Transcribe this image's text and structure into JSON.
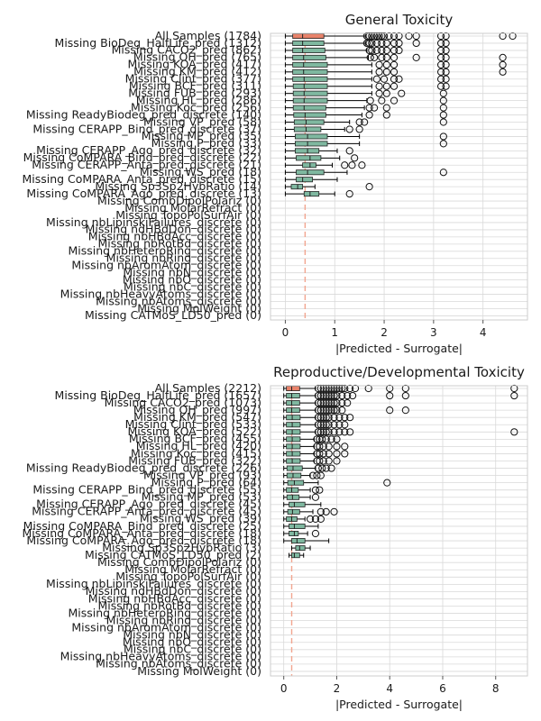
{
  "chart_data": [
    {
      "type": "box",
      "orientation": "horizontal",
      "title": "General Toxicity",
      "xlabel": "|Predicted - Surrogate|",
      "xlim": [
        -0.3,
        4.9
      ],
      "xticks": [
        0,
        1,
        2,
        3,
        4
      ],
      "ref_line": 0.4,
      "grid": true,
      "colors": {
        "highlight": "#e8826a",
        "box": "#7fb8a0",
        "ref": "#f2a58f",
        "grid": "#d9d9d9"
      },
      "categories": [
        {
          "label": "All Samples (1784)",
          "q1": 0.15,
          "med": 0.35,
          "q3": 0.78,
          "wlo": 0.0,
          "whi": 1.62,
          "out": [
            1.65,
            1.7,
            1.75,
            1.8,
            1.85,
            1.9,
            1.95,
            2.0,
            2.1,
            2.2,
            2.3,
            2.5,
            2.65,
            3.15,
            3.25,
            4.4,
            4.6
          ],
          "hl": true
        },
        {
          "label": "Missing BioDeg_HalfLife_pred (1312)",
          "q1": 0.15,
          "med": 0.35,
          "q3": 0.78,
          "wlo": 0.0,
          "whi": 1.62,
          "out": [
            1.65,
            1.7,
            1.75,
            1.85,
            1.95,
            2.05,
            2.2,
            2.3,
            2.65,
            3.15,
            3.25
          ]
        },
        {
          "label": "Missing CACO2_pred (862)",
          "q1": 0.15,
          "med": 0.35,
          "q3": 0.8,
          "wlo": 0.0,
          "whi": 1.65,
          "out": [
            1.7,
            1.75,
            1.85,
            1.95,
            2.05,
            2.2,
            2.3,
            3.15,
            3.25
          ]
        },
        {
          "label": "Missing OH_pred (765)",
          "q1": 0.15,
          "med": 0.37,
          "q3": 0.82,
          "wlo": 0.0,
          "whi": 1.68,
          "out": [
            1.72,
            1.8,
            1.95,
            2.05,
            2.2,
            2.65,
            3.15,
            3.25,
            4.4
          ]
        },
        {
          "label": "Missing KOA_pred (417)",
          "q1": 0.15,
          "med": 0.37,
          "q3": 0.85,
          "wlo": 0.0,
          "whi": 1.75,
          "out": [
            1.9,
            2.05,
            2.2,
            3.15,
            3.25,
            4.4
          ]
        },
        {
          "label": "Missing KM_pred (412)",
          "q1": 0.15,
          "med": 0.37,
          "q3": 0.85,
          "wlo": 0.0,
          "whi": 1.75,
          "out": [
            1.9,
            2.05,
            2.2,
            3.15,
            3.25,
            4.4
          ]
        },
        {
          "label": "Missing Clint_pred (377)",
          "q1": 0.15,
          "med": 0.38,
          "q3": 0.85,
          "wlo": 0.0,
          "whi": 1.75,
          "out": [
            1.85,
            2.0,
            2.2,
            2.3,
            3.15,
            3.25
          ]
        },
        {
          "label": "Missing BCF_pred (311)",
          "q1": 0.16,
          "med": 0.38,
          "q3": 0.85,
          "wlo": 0.0,
          "whi": 1.75,
          "out": [
            1.9,
            2.05,
            2.2,
            3.15,
            3.25
          ]
        },
        {
          "label": "Missing FUB_pred (293)",
          "q1": 0.16,
          "med": 0.38,
          "q3": 0.85,
          "wlo": 0.0,
          "whi": 1.75,
          "out": [
            1.9,
            2.05,
            2.35,
            3.2
          ]
        },
        {
          "label": "Missing HL_pred (286)",
          "q1": 0.16,
          "med": 0.38,
          "q3": 0.85,
          "wlo": 0.0,
          "whi": 1.65,
          "out": [
            1.72,
            1.95,
            2.2,
            3.2
          ]
        },
        {
          "label": "Missing Koc_pred (256)",
          "q1": 0.16,
          "med": 0.38,
          "q3": 0.82,
          "wlo": 0.0,
          "whi": 1.6,
          "out": [
            1.7,
            1.8,
            2.05,
            3.2
          ]
        },
        {
          "label": "Missing ReadyBiodeg_pred_discrete (140)",
          "q1": 0.17,
          "med": 0.4,
          "q3": 0.82,
          "wlo": 0.0,
          "whi": 1.55,
          "out": [
            1.7,
            2.05,
            3.2
          ]
        },
        {
          "label": "Missing VP_pred (58)",
          "q1": 0.18,
          "med": 0.42,
          "q3": 0.78,
          "wlo": 0.0,
          "whi": 1.3,
          "out": [
            1.5,
            1.6,
            3.2
          ]
        },
        {
          "label": "Missing CERAPP_Bind_pred_discrete (37)",
          "q1": 0.18,
          "med": 0.42,
          "q3": 0.72,
          "wlo": 0.0,
          "whi": 1.2,
          "out": [
            1.3,
            1.5
          ]
        },
        {
          "label": "Missing MP_pred (35)",
          "q1": 0.2,
          "med": 0.45,
          "q3": 0.85,
          "wlo": 0.0,
          "whi": 1.5,
          "out": [
            3.2
          ]
        },
        {
          "label": "Missing P_pred (33)",
          "q1": 0.2,
          "med": 0.45,
          "q3": 0.85,
          "wlo": 0.0,
          "whi": 1.5,
          "out": [
            3.2
          ]
        },
        {
          "label": "Missing CERAPP_Ago_pred_discrete (32)",
          "q1": 0.2,
          "med": 0.45,
          "q3": 0.68,
          "wlo": 0.0,
          "whi": 1.05,
          "out": [
            1.3
          ]
        },
        {
          "label": "Missing CoMPARA_Bind_pred_discrete (22)",
          "q1": 0.22,
          "med": 0.5,
          "q3": 0.72,
          "wlo": 0.0,
          "whi": 1.1,
          "out": [
            1.4
          ]
        },
        {
          "label": "Missing CERAPP_Anta_pred_discrete (21)",
          "q1": 0.35,
          "med": 0.5,
          "q3": 0.62,
          "wlo": 0.0,
          "whi": 0.95,
          "out": [
            1.2,
            1.35,
            1.55
          ]
        },
        {
          "label": "Missing WS_pred (18)",
          "q1": 0.22,
          "med": 0.45,
          "q3": 0.78,
          "wlo": 0.0,
          "whi": 1.25,
          "out": [
            3.2
          ]
        },
        {
          "label": "Missing CoMPARA_Anta_pred_discrete (15)",
          "q1": 0.22,
          "med": 0.35,
          "q3": 0.55,
          "wlo": 0.0,
          "whi": 1.05,
          "out": []
        },
        {
          "label": "Missing Sp3Sp2HybRatio (14)",
          "q1": 0.12,
          "med": 0.25,
          "q3": 0.35,
          "wlo": 0.0,
          "whi": 0.6,
          "out": [
            1.7
          ]
        },
        {
          "label": "Missing CoMPARA_Ago_pred_discrete (13)",
          "q1": 0.38,
          "med": 0.5,
          "q3": 0.68,
          "wlo": 0.0,
          "whi": 1.0,
          "out": [
            1.3
          ]
        },
        {
          "label": "Missing CombDipolPolariz (0)"
        },
        {
          "label": "Missing MolarRefract (0)"
        },
        {
          "label": "Missing TopoPolSurfAir (0)"
        },
        {
          "label": "Missing nbLipinskiFailures_discrete (0)"
        },
        {
          "label": "Missing ndHBdDon_discrete (0)"
        },
        {
          "label": "Missing nbHBdAcc_discrete (0)"
        },
        {
          "label": "Missing nbRotBd_discrete (0)"
        },
        {
          "label": "Missing nbHeteroRing_discrete (0)"
        },
        {
          "label": "Missing nbRing_discrete (0)"
        },
        {
          "label": "Missing nbAromAtom_discrete (0)"
        },
        {
          "label": "Missing nbN_discrete (0)"
        },
        {
          "label": "Missing nbO_discrete (0)"
        },
        {
          "label": "Missing nbC_discrete (0)"
        },
        {
          "label": "Missing nbHeavyAtoms_discrete (0)"
        },
        {
          "label": "Missing nbAtoms_discrete (0)"
        },
        {
          "label": "Missing MolWeight (0)"
        },
        {
          "label": "Missing CATMoS_LD50_pred (0)"
        }
      ]
    },
    {
      "type": "box",
      "orientation": "horizontal",
      "title": "Reproductive/Developmental Toxicity",
      "xlabel": "|Predicted - Surrogate|",
      "xlim": [
        -0.5,
        9.2
      ],
      "xticks": [
        0,
        2,
        4,
        6,
        8
      ],
      "ref_line": 0.3,
      "grid": true,
      "colors": {
        "highlight": "#e8826a",
        "box": "#7fb8a0",
        "ref": "#f2a58f",
        "grid": "#d9d9d9"
      },
      "categories": [
        {
          "label": "All Samples (2212)",
          "q1": 0.1,
          "med": 0.3,
          "q3": 0.6,
          "wlo": 0.0,
          "whi": 1.2,
          "out": [
            1.3,
            1.4,
            1.5,
            1.6,
            1.7,
            1.8,
            1.9,
            2.0,
            2.1,
            2.2,
            2.3,
            2.5,
            2.7,
            3.2,
            4.0,
            4.6,
            8.7
          ],
          "hl": true
        },
        {
          "label": "Missing BioDeg_HalfLife_pred (1657)",
          "q1": 0.1,
          "med": 0.3,
          "q3": 0.6,
          "wlo": 0.0,
          "whi": 1.2,
          "out": [
            1.3,
            1.4,
            1.5,
            1.6,
            1.7,
            1.8,
            1.9,
            2.0,
            2.2,
            2.4,
            2.6,
            4.0,
            4.6,
            8.7
          ]
        },
        {
          "label": "Missing CACO2_pred (1073)",
          "q1": 0.1,
          "med": 0.3,
          "q3": 0.6,
          "wlo": 0.0,
          "whi": 1.2,
          "out": [
            1.3,
            1.4,
            1.5,
            1.6,
            1.7,
            1.8,
            1.9,
            2.0,
            2.2,
            2.4
          ]
        },
        {
          "label": "Missing OH_pred (997)",
          "q1": 0.1,
          "med": 0.3,
          "q3": 0.6,
          "wlo": 0.0,
          "whi": 1.2,
          "out": [
            1.3,
            1.4,
            1.5,
            1.6,
            1.7,
            1.8,
            1.9,
            2.0,
            2.2,
            4.0,
            4.6
          ]
        },
        {
          "label": "Missing KM_pred (547)",
          "q1": 0.1,
          "med": 0.32,
          "q3": 0.62,
          "wlo": 0.0,
          "whi": 1.2,
          "out": [
            1.3,
            1.4,
            1.5,
            1.6,
            1.7,
            1.9,
            2.1,
            2.3,
            2.5
          ]
        },
        {
          "label": "Missing Clint_pred (533)",
          "q1": 0.1,
          "med": 0.32,
          "q3": 0.62,
          "wlo": 0.0,
          "whi": 1.2,
          "out": [
            1.3,
            1.4,
            1.5,
            1.6,
            1.7,
            1.9,
            2.1,
            2.3
          ]
        },
        {
          "label": "Missing KOA_pred (522)",
          "q1": 0.1,
          "med": 0.32,
          "q3": 0.62,
          "wlo": 0.0,
          "whi": 1.2,
          "out": [
            1.3,
            1.4,
            1.5,
            1.6,
            1.7,
            1.9,
            2.1,
            2.3,
            2.5,
            8.7
          ]
        },
        {
          "label": "Missing BCF_pred (455)",
          "q1": 0.1,
          "med": 0.32,
          "q3": 0.62,
          "wlo": 0.0,
          "whi": 1.15,
          "out": [
            1.25,
            1.35,
            1.45,
            1.6,
            1.8,
            2.0
          ]
        },
        {
          "label": "Missing HL_pred (420)",
          "q1": 0.1,
          "med": 0.32,
          "q3": 0.62,
          "wlo": 0.0,
          "whi": 1.15,
          "out": [
            1.25,
            1.35,
            1.5,
            1.7,
            2.0,
            2.3
          ]
        },
        {
          "label": "Missing Koc_pred (415)",
          "q1": 0.1,
          "med": 0.32,
          "q3": 0.62,
          "wlo": 0.0,
          "whi": 1.15,
          "out": [
            1.25,
            1.35,
            1.5,
            1.7,
            2.0,
            2.3
          ]
        },
        {
          "label": "Missing FUB_pred (322)",
          "q1": 0.1,
          "med": 0.32,
          "q3": 0.62,
          "wlo": 0.0,
          "whi": 1.15,
          "out": [
            1.25,
            1.35,
            1.5,
            1.7,
            2.0
          ]
        },
        {
          "label": "Missing ReadyBiodeg_pred_discrete (226)",
          "q1": 0.12,
          "med": 0.35,
          "q3": 0.7,
          "wlo": 0.0,
          "whi": 1.2,
          "out": [
            1.3,
            1.45,
            1.6,
            1.8
          ]
        },
        {
          "label": "Missing VP_pred (93)",
          "q1": 0.12,
          "med": 0.35,
          "q3": 0.65,
          "wlo": 0.0,
          "whi": 1.0,
          "out": [
            1.1,
            1.25,
            1.4
          ]
        },
        {
          "label": "Missing P_pred (64)",
          "q1": 0.15,
          "med": 0.4,
          "q3": 0.75,
          "wlo": 0.0,
          "whi": 1.3,
          "out": [
            3.9
          ]
        },
        {
          "label": "Missing CERAPP_Bind_pred_discrete (55)",
          "q1": 0.1,
          "med": 0.3,
          "q3": 0.55,
          "wlo": 0.0,
          "whi": 1.0,
          "out": [
            1.2,
            1.35
          ]
        },
        {
          "label": "Missing MP_pred (53)",
          "q1": 0.12,
          "med": 0.33,
          "q3": 0.58,
          "wlo": 0.0,
          "whi": 1.0,
          "out": [
            1.2
          ]
        },
        {
          "label": "Missing CERAPP_Ago_pred_discrete (45)",
          "q1": 0.2,
          "med": 0.4,
          "q3": 0.8,
          "wlo": 0.0,
          "whi": 1.4,
          "out": []
        },
        {
          "label": "Missing CERAPP_Anta_pred_discrete (45)",
          "q1": 0.15,
          "med": 0.33,
          "q3": 0.6,
          "wlo": 0.0,
          "whi": 1.1,
          "out": [
            1.4,
            1.6,
            1.9
          ]
        },
        {
          "label": "Missing WS_pred (39)",
          "q1": 0.1,
          "med": 0.3,
          "q3": 0.5,
          "wlo": 0.0,
          "whi": 0.8,
          "out": [
            1.0,
            1.2,
            1.4
          ]
        },
        {
          "label": "Missing CoMPARA_Bind_pred_discrete (25)",
          "q1": 0.2,
          "med": 0.4,
          "q3": 0.8,
          "wlo": 0.0,
          "whi": 1.3,
          "out": []
        },
        {
          "label": "Missing CoMPARA_Anta_pred_discrete (18)",
          "q1": 0.2,
          "med": 0.4,
          "q3": 0.55,
          "wlo": 0.0,
          "whi": 0.9,
          "out": [
            1.2
          ]
        },
        {
          "label": "Missing CoMPARA_Ago_pred_discrete (18)",
          "q1": 0.3,
          "med": 0.5,
          "q3": 0.8,
          "wlo": 0.0,
          "whi": 1.7,
          "out": []
        },
        {
          "label": "Missing Sp3Sp2HybRatio (3)",
          "q1": 0.45,
          "med": 0.6,
          "q3": 0.8,
          "wlo": 0.3,
          "whi": 1.0,
          "out": []
        },
        {
          "label": "Missing CATMoS_LD50_pred (2)",
          "q1": 0.3,
          "med": 0.4,
          "q3": 0.6,
          "wlo": 0.2,
          "whi": 0.75,
          "out": []
        },
        {
          "label": "Missing CombDipolPolariz (0)"
        },
        {
          "label": "Missing MolarRefract (0)"
        },
        {
          "label": "Missing TopoPolSurfAir (0)"
        },
        {
          "label": "Missing nbLipinskiFailures_discrete (0)"
        },
        {
          "label": "Missing ndHBdDon_discrete (0)"
        },
        {
          "label": "Missing nbHBdAcc_discrete (0)"
        },
        {
          "label": "Missing nbRotBd_discrete (0)"
        },
        {
          "label": "Missing nbHeteroRing_discrete (0)"
        },
        {
          "label": "Missing nbRing_discrete (0)"
        },
        {
          "label": "Missing nbAromAtom_discrete (0)"
        },
        {
          "label": "Missing nbN_discrete (0)"
        },
        {
          "label": "Missing nbO_discrete (0)"
        },
        {
          "label": "Missing nbC_discrete (0)"
        },
        {
          "label": "Missing nbHeavyAtoms_discrete (0)"
        },
        {
          "label": "Missing nbAtoms_discrete (0)"
        },
        {
          "label": "Missing MolWeight (0)"
        }
      ]
    }
  ]
}
